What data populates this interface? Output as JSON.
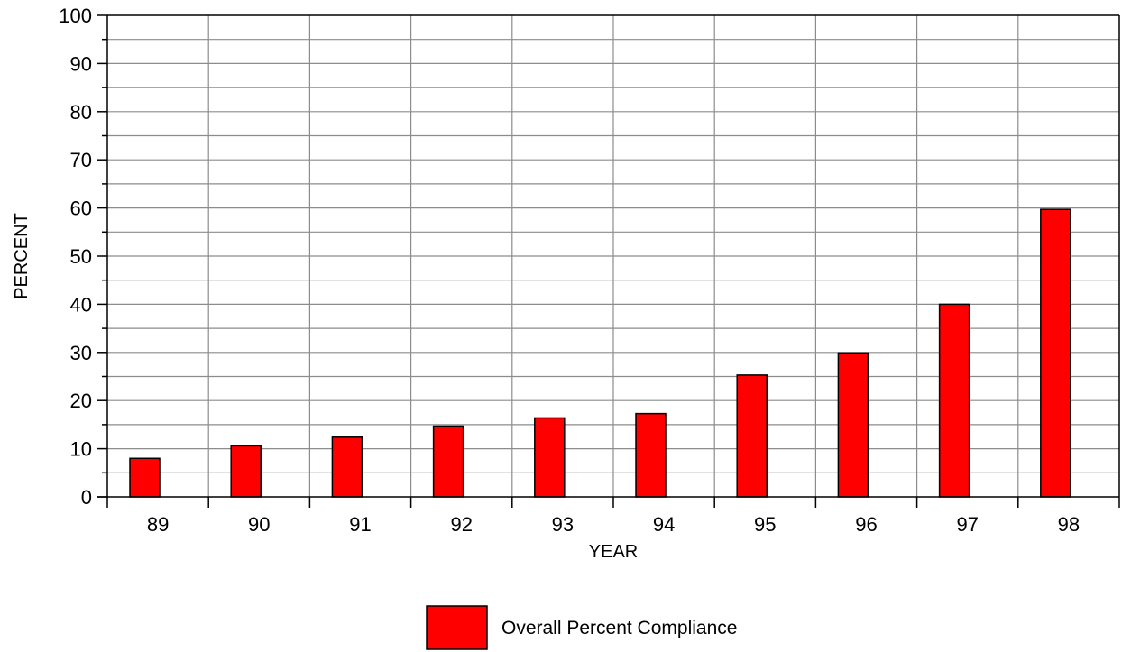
{
  "chart_data": {
    "type": "bar",
    "categories": [
      "89",
      "90",
      "91",
      "92",
      "93",
      "94",
      "95",
      "96",
      "97",
      "98"
    ],
    "series": [
      {
        "name": "Overall Percent Compliance",
        "values": [
          8,
          10.6,
          12.4,
          14.7,
          16.4,
          17.3,
          25.3,
          29.9,
          40,
          59.7
        ],
        "color": "#ff0000"
      }
    ],
    "xlabel": "YEAR",
    "ylabel": "PERCENT",
    "ylim": [
      0,
      100
    ],
    "yticks": [
      0,
      10,
      20,
      30,
      40,
      50,
      60,
      70,
      80,
      90,
      100
    ],
    "yticklabels": [
      "0",
      "10",
      "20",
      "30",
      "40",
      "50",
      "60",
      "70",
      "80",
      "90",
      "100"
    ],
    "grid": true,
    "legend_position": "bottom-center"
  }
}
